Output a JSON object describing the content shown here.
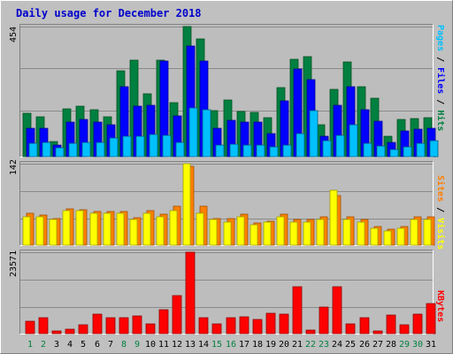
{
  "title": "Daily usage for December 2018",
  "colors": {
    "background": "#c0c0c0",
    "plot_bg": "#bdbdbd",
    "gridline": "#8a8a8a",
    "title": "#0000cc",
    "hits": "#008040",
    "files": "#0000ff",
    "pages": "#00c0ff",
    "visits": "#ffff00",
    "sites": "#ff8000",
    "kbytes": "#ff0000",
    "weekend_label": "#008040",
    "weekday_label": "#000000"
  },
  "panels": {
    "top": {
      "max_label": "454",
      "labels": [
        {
          "text": "Pages",
          "color": "#00c0ff"
        },
        {
          "text": " / ",
          "color": "#000000"
        },
        {
          "text": "Files",
          "color": "#0000ff"
        },
        {
          "text": " / ",
          "color": "#000000"
        },
        {
          "text": "Hits",
          "color": "#008040"
        }
      ]
    },
    "middle": {
      "max_label": "142",
      "labels": [
        {
          "text": "Sites",
          "color": "#ff8000"
        },
        {
          "text": " / ",
          "color": "#000000"
        },
        {
          "text": "Visits",
          "color": "#ffff00"
        }
      ]
    },
    "bottom": {
      "max_label": "23571",
      "labels": [
        {
          "text": "KBytes",
          "color": "#ff0000"
        }
      ]
    }
  },
  "chart_data": {
    "type": "bar",
    "title": "Daily usage for December 2018",
    "categories": [
      "1",
      "2",
      "3",
      "4",
      "5",
      "6",
      "7",
      "8",
      "9",
      "10",
      "11",
      "12",
      "13",
      "14",
      "15",
      "16",
      "17",
      "18",
      "19",
      "20",
      "21",
      "22",
      "23",
      "24",
      "25",
      "26",
      "27",
      "28",
      "29",
      "30",
      "31"
    ],
    "weekend_days": [
      "1",
      "2",
      "8",
      "9",
      "15",
      "16",
      "22",
      "23",
      "29",
      "30"
    ],
    "panels": [
      {
        "name": "Pages / Files / Hits",
        "ymax": 454,
        "series": [
          {
            "name": "Hits",
            "values": [
              150,
              140,
              53,
              168,
              175,
              165,
              140,
              300,
              338,
              220,
              338,
              188,
              454,
              410,
              162,
              198,
              158,
              155,
              137,
              240,
              340,
              348,
              110,
              235,
              330,
              245,
              203,
              71,
              130,
              133,
              137
            ]
          },
          {
            "name": "Files",
            "values": [
              100,
              100,
              40,
              120,
              130,
              120,
              110,
              245,
              175,
              180,
              335,
              142,
              385,
              335,
              100,
              128,
              120,
              120,
              80,
              195,
              305,
              270,
              70,
              180,
              245,
              165,
              125,
              50,
              90,
              95,
              98
            ]
          },
          {
            "name": "Pages",
            "values": [
              45,
              50,
              30,
              45,
              50,
              50,
              65,
              70,
              70,
              78,
              75,
              50,
              170,
              165,
              40,
              43,
              40,
              40,
              35,
              40,
              80,
              160,
              55,
              75,
              110,
              45,
              38,
              25,
              35,
              45,
              55
            ]
          }
        ]
      },
      {
        "name": "Sites / Visits",
        "ymax": 142,
        "series": [
          {
            "name": "Visits",
            "values": [
              50,
              50,
              45,
              60,
              60,
              55,
              55,
              55,
              45,
              55,
              50,
              60,
              142,
              55,
              45,
              40,
              50,
              35,
              40,
              50,
              40,
              40,
              45,
              95,
              45,
              40,
              30,
              25,
              30,
              45,
              45
            ]
          },
          {
            "name": "Sites",
            "values": [
              55,
              53,
              47,
              64,
              62,
              58,
              59,
              59,
              48,
              60,
              54,
              68,
              138,
              68,
              47,
              46,
              54,
              38,
              42,
              54,
              44,
              44,
              49,
              86,
              49,
              45,
              33,
              28,
              33,
              50,
              49
            ]
          }
        ]
      },
      {
        "name": "KBytes",
        "ymax": 23571,
        "series": [
          {
            "name": "KBytes",
            "values": [
              3500,
              4700,
              800,
              1400,
              2500,
              5600,
              4700,
              4700,
              5200,
              2700,
              7000,
              11000,
              23571,
              4500,
              2700,
              4700,
              4900,
              4100,
              6000,
              5700,
              13500,
              900,
              7600,
              13600,
              2800,
              4700,
              700,
              5400,
              2600,
              5600,
              8600
            ]
          }
        ]
      }
    ]
  }
}
